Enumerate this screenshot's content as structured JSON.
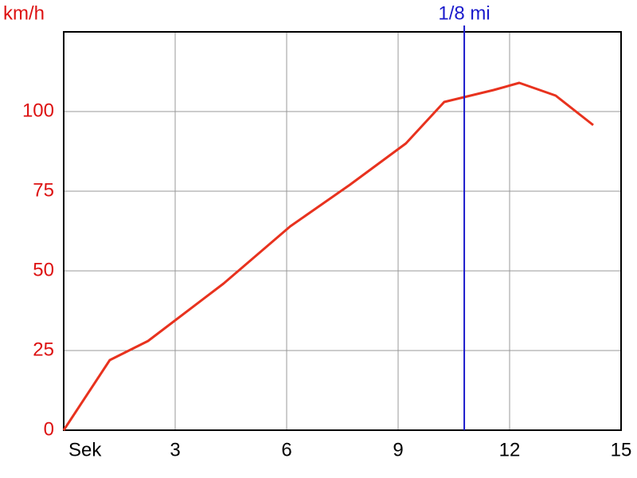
{
  "chart_data": {
    "type": "line",
    "y_label": "km/h",
    "x": [
      0,
      1.24,
      2.27,
      4.3,
      6.1,
      7.7,
      9.21,
      10.24,
      11.57,
      12.26,
      13.24,
      14.25
    ],
    "series": [
      {
        "color": "#e8321e",
        "values": [
          0,
          22,
          28,
          46,
          64,
          77,
          90,
          103,
          106.75,
          109,
          105,
          95.75
        ]
      }
    ],
    "xlim": [
      0,
      15
    ],
    "xticks": [
      {
        "value": 0,
        "label": "Sek"
      },
      3,
      6,
      9,
      12,
      15
    ],
    "ylim": [
      0,
      125
    ],
    "yticks": [
      0,
      25,
      50,
      75,
      100
    ],
    "grid": true,
    "markers": [
      {
        "x": 10.78,
        "label": "1/8 mi",
        "color": "#1a1acc"
      }
    ],
    "y_tick_color": "#dd1111"
  }
}
